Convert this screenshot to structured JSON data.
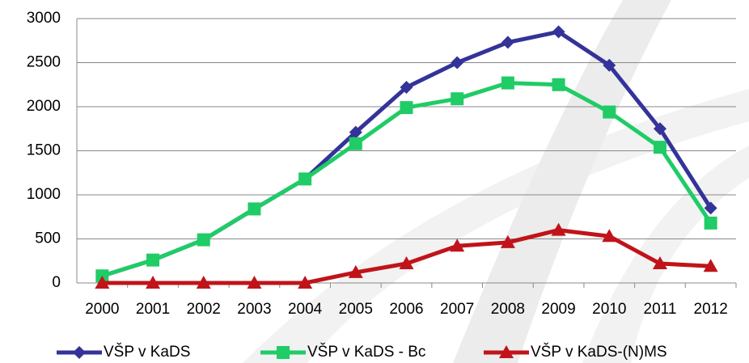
{
  "chart_data": {
    "type": "line",
    "categories": [
      "2000",
      "2001",
      "2002",
      "2003",
      "2004",
      "2005",
      "2006",
      "2007",
      "2008",
      "2009",
      "2010",
      "2011",
      "2012"
    ],
    "series": [
      {
        "name": "VŠP v KaDS",
        "color": "#333399",
        "marker": "diamond",
        "values": [
          80,
          260,
          490,
          840,
          1180,
          1710,
          2220,
          2500,
          2730,
          2850,
          2470,
          1750,
          850
        ]
      },
      {
        "name": "VŠP v KaDS - Bc",
        "color": "#1fcc66",
        "marker": "square",
        "values": [
          80,
          260,
          490,
          840,
          1180,
          1580,
          1990,
          2090,
          2270,
          2250,
          1940,
          1540,
          680
        ]
      },
      {
        "name": "VŠP v KaDS-(N)MS",
        "color": "#c0141a",
        "marker": "triangle",
        "values": [
          0,
          0,
          0,
          0,
          0,
          120,
          220,
          420,
          460,
          600,
          530,
          220,
          190
        ]
      }
    ],
    "ylim": [
      0,
      3000
    ],
    "yticks": [
      0,
      500,
      1000,
      1500,
      2000,
      2500,
      3000
    ],
    "grid": true,
    "legend": "bottom"
  }
}
